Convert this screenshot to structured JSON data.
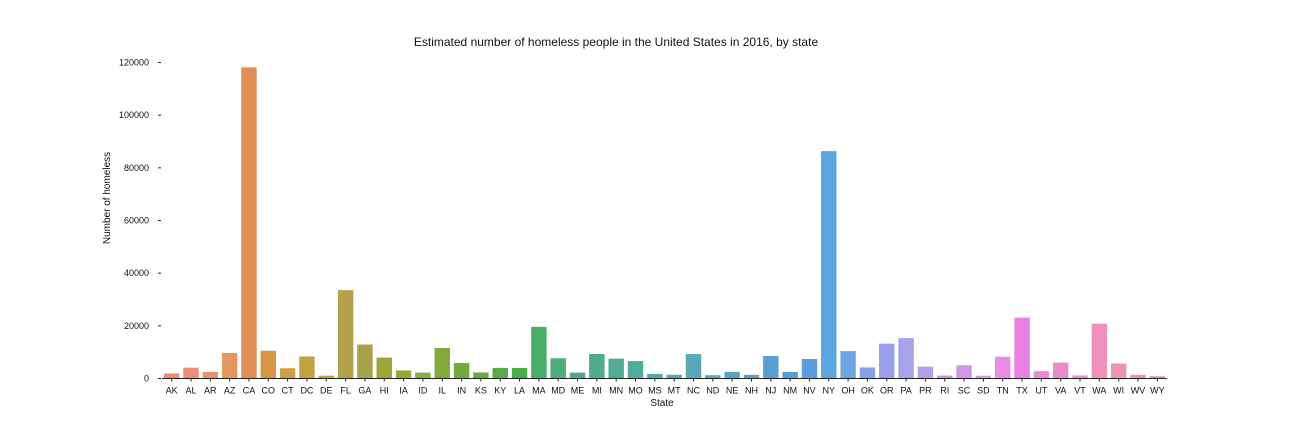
{
  "chart_data": {
    "type": "bar",
    "title": "Estimated number of homeless people in the United States in 2016, by state",
    "xlabel": "State",
    "ylabel": "Number of homeless",
    "ylim": [
      0,
      120000
    ],
    "yticks": [
      0,
      20000,
      40000,
      60000,
      80000,
      100000,
      120000
    ],
    "grid": false,
    "categories": [
      "AK",
      "AL",
      "AR",
      "AZ",
      "CA",
      "CO",
      "CT",
      "DC",
      "DE",
      "FL",
      "GA",
      "HI",
      "IA",
      "ID",
      "IL",
      "IN",
      "KS",
      "KY",
      "LA",
      "MA",
      "MD",
      "ME",
      "MI",
      "MN",
      "MO",
      "MS",
      "MT",
      "NC",
      "ND",
      "NE",
      "NH",
      "NJ",
      "NM",
      "NV",
      "NY",
      "OH",
      "OK",
      "OR",
      "PA",
      "PR",
      "RI",
      "SC",
      "SD",
      "TN",
      "TX",
      "UT",
      "VA",
      "VT",
      "WA",
      "WI",
      "WV",
      "WY"
    ],
    "values": [
      1940,
      4111,
      2463,
      9707,
      118142,
      10550,
      3902,
      8350,
      1070,
      33559,
      12909,
      7921,
      3064,
      2247,
      11590,
      5863,
      2287,
      4025,
      3994,
      19608,
      7689,
      2241,
      9316,
      7546,
      6600,
      1738,
      1418,
      9268,
      1258,
      2500,
      1400,
      8536,
      2500,
      7398,
      86352,
      10404,
      4191,
      13238,
      15339,
      4518,
      1120,
      5050,
      1067,
      8300,
      23122,
      2807,
      6067,
      1159,
      20827,
      5687,
      1387,
      857
    ],
    "colors": [
      "#ef8a7a",
      "#ee8e73",
      "#e9936c",
      "#e7965f",
      "#e18e57",
      "#da9647",
      "#cf9e43",
      "#c3a240",
      "#b7a440",
      "#b2a14a",
      "#a8a24a",
      "#9ea438",
      "#94a838",
      "#8aab3d",
      "#83a93b",
      "#72aa40",
      "#68ac40",
      "#5aac48",
      "#4cab4a",
      "#48af6a",
      "#4fad78",
      "#4fad84",
      "#50ac8e",
      "#52ab98",
      "#53aaa0",
      "#55a9a8",
      "#57a8b0",
      "#59a7b8",
      "#5aa5bf",
      "#5ba3c6",
      "#5aa1cd",
      "#5a9fd3",
      "#5b9dd9",
      "#5c9bde",
      "#5aa6dd",
      "#6fa4e3",
      "#84a2e7",
      "#98a0ea",
      "#a6a3ea",
      "#b59eea",
      "#c39aea",
      "#d096ea",
      "#dd93e8",
      "#e68ee6",
      "#e87fe2",
      "#e98ad9",
      "#ea8dcf",
      "#eb8fc6",
      "#eb91bc",
      "#ec93b2",
      "#ed91a6",
      "#ee8e9a"
    ]
  }
}
